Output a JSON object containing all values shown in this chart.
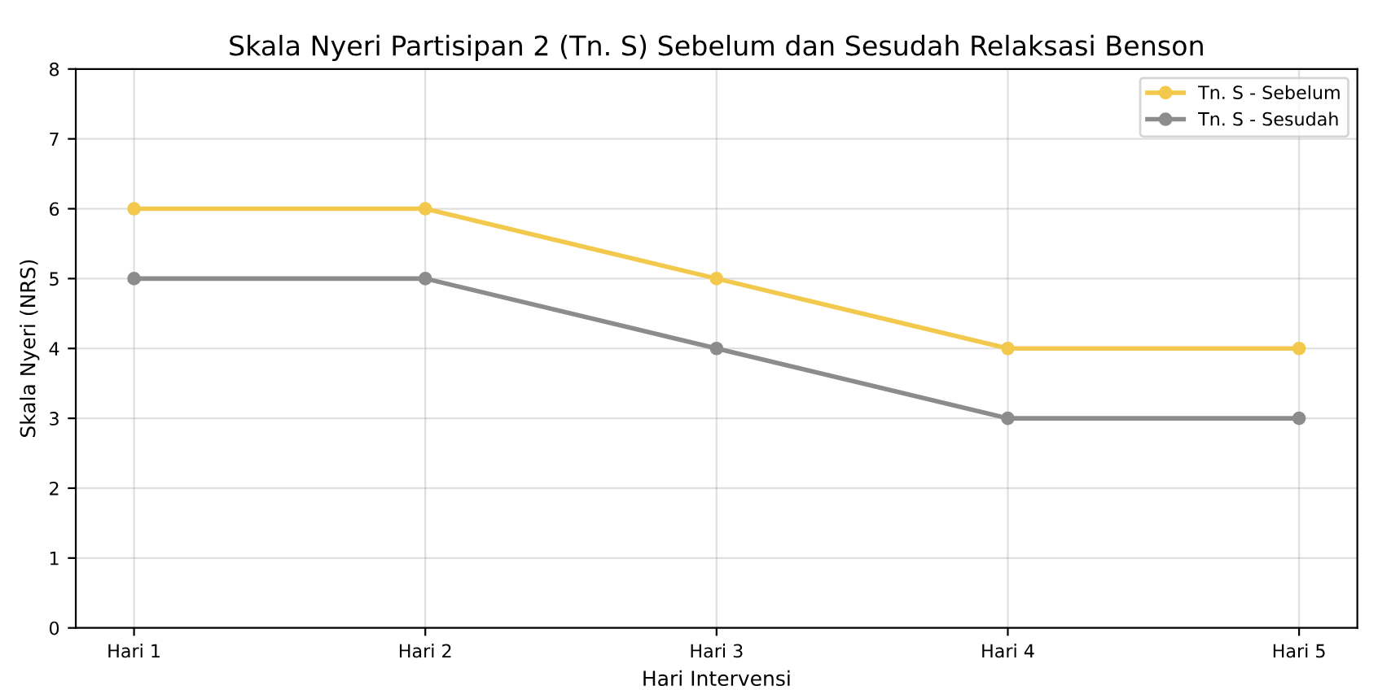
{
  "chart_data": {
    "type": "line",
    "title": "Skala Nyeri Partisipan 2 (Tn. S) Sebelum dan Sesudah Relaksasi Benson",
    "xlabel": "Hari Intervensi",
    "ylabel": "Skala Nyeri (NRS)",
    "categories": [
      "Hari 1",
      "Hari 2",
      "Hari 3",
      "Hari 4",
      "Hari 5"
    ],
    "series": [
      {
        "name": "Tn. S - Sebelum",
        "color": "#f2c94c",
        "values": [
          6,
          6,
          5,
          4,
          4
        ]
      },
      {
        "name": "Tn. S - Sesudah",
        "color": "#8c8c8c",
        "values": [
          5,
          5,
          4,
          3,
          3
        ]
      }
    ],
    "ylim": [
      0,
      8
    ],
    "yticks": [
      0,
      1,
      2,
      3,
      4,
      5,
      6,
      7,
      8
    ],
    "grid": true,
    "legend": "top right",
    "marker": "circle",
    "line_style": "solid"
  }
}
